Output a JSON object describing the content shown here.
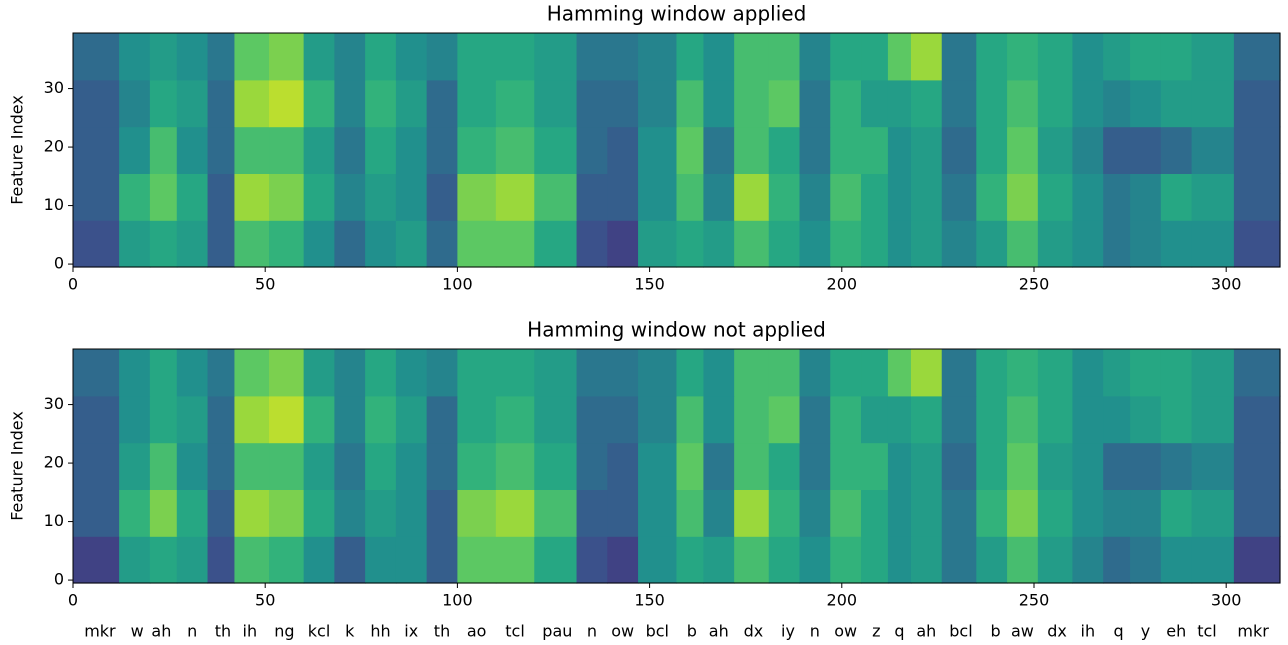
{
  "chart_data": [
    {
      "type": "heatmap",
      "title": "Hamming window applied",
      "ylabel": "Feature Index",
      "colormap": "viridis",
      "xlim": [
        0,
        314
      ],
      "ylim": [
        -0.5,
        39.5
      ],
      "xticks": [
        0,
        50,
        100,
        150,
        200,
        250,
        300
      ],
      "yticks": [
        0,
        10,
        20,
        30
      ],
      "x_edges": [
        0,
        12,
        20,
        27,
        35,
        42,
        51,
        60,
        68,
        76,
        84,
        92,
        100,
        110,
        120,
        131,
        139,
        147,
        157,
        164,
        172,
        181,
        189,
        197,
        205,
        212,
        218,
        226,
        235,
        243,
        251,
        260,
        268,
        275,
        283,
        291,
        302,
        314
      ],
      "y_edges": [
        -0.5,
        7.5,
        15.5,
        23.5,
        31.5,
        39.5
      ],
      "z": [
        [
          0.25,
          0.55,
          0.6,
          0.55,
          0.3,
          0.7,
          0.65,
          0.5,
          0.35,
          0.5,
          0.55,
          0.35,
          0.75,
          0.75,
          0.6,
          0.25,
          0.2,
          0.55,
          0.6,
          0.55,
          0.7,
          0.6,
          0.5,
          0.65,
          0.6,
          0.5,
          0.55,
          0.45,
          0.55,
          0.7,
          0.55,
          0.5,
          0.4,
          0.45,
          0.5,
          0.5,
          0.25
        ],
        [
          0.3,
          0.65,
          0.75,
          0.6,
          0.3,
          0.85,
          0.8,
          0.6,
          0.45,
          0.55,
          0.5,
          0.3,
          0.8,
          0.85,
          0.7,
          0.3,
          0.3,
          0.5,
          0.7,
          0.45,
          0.85,
          0.65,
          0.45,
          0.7,
          0.6,
          0.5,
          0.55,
          0.4,
          0.65,
          0.8,
          0.6,
          0.5,
          0.4,
          0.45,
          0.6,
          0.55,
          0.3
        ],
        [
          0.3,
          0.5,
          0.7,
          0.5,
          0.35,
          0.7,
          0.7,
          0.55,
          0.4,
          0.6,
          0.5,
          0.35,
          0.65,
          0.7,
          0.6,
          0.35,
          0.3,
          0.5,
          0.75,
          0.4,
          0.7,
          0.6,
          0.4,
          0.65,
          0.65,
          0.5,
          0.55,
          0.35,
          0.6,
          0.75,
          0.55,
          0.45,
          0.3,
          0.3,
          0.35,
          0.45,
          0.3
        ],
        [
          0.3,
          0.45,
          0.6,
          0.55,
          0.35,
          0.85,
          0.9,
          0.65,
          0.45,
          0.65,
          0.55,
          0.35,
          0.6,
          0.65,
          0.55,
          0.35,
          0.35,
          0.45,
          0.7,
          0.5,
          0.7,
          0.75,
          0.4,
          0.65,
          0.55,
          0.55,
          0.6,
          0.4,
          0.6,
          0.7,
          0.6,
          0.5,
          0.45,
          0.5,
          0.55,
          0.55,
          0.3
        ],
        [
          0.35,
          0.5,
          0.55,
          0.5,
          0.4,
          0.75,
          0.8,
          0.55,
          0.45,
          0.6,
          0.5,
          0.45,
          0.6,
          0.6,
          0.55,
          0.4,
          0.4,
          0.45,
          0.6,
          0.5,
          0.7,
          0.7,
          0.45,
          0.6,
          0.6,
          0.75,
          0.85,
          0.4,
          0.6,
          0.65,
          0.6,
          0.5,
          0.55,
          0.6,
          0.6,
          0.55,
          0.35
        ]
      ]
    },
    {
      "type": "heatmap",
      "title": "Hamming window not applied",
      "ylabel": "Feature Index",
      "colormap": "viridis",
      "xlim": [
        0,
        314
      ],
      "ylim": [
        -0.5,
        39.5
      ],
      "xticks": [
        0,
        50,
        100,
        150,
        200,
        250,
        300
      ],
      "yticks": [
        0,
        10,
        20,
        30
      ],
      "x_edges": [
        0,
        12,
        20,
        27,
        35,
        42,
        51,
        60,
        68,
        76,
        84,
        92,
        100,
        110,
        120,
        131,
        139,
        147,
        157,
        164,
        172,
        181,
        189,
        197,
        205,
        212,
        218,
        226,
        235,
        243,
        251,
        260,
        268,
        275,
        283,
        291,
        302,
        314
      ],
      "y_edges": [
        -0.5,
        7.5,
        15.5,
        23.5,
        31.5,
        39.5
      ],
      "z": [
        [
          0.2,
          0.55,
          0.6,
          0.55,
          0.25,
          0.7,
          0.65,
          0.5,
          0.3,
          0.5,
          0.5,
          0.3,
          0.75,
          0.75,
          0.6,
          0.25,
          0.2,
          0.5,
          0.6,
          0.55,
          0.7,
          0.6,
          0.5,
          0.65,
          0.6,
          0.5,
          0.55,
          0.4,
          0.55,
          0.7,
          0.55,
          0.45,
          0.35,
          0.4,
          0.5,
          0.5,
          0.2
        ],
        [
          0.3,
          0.65,
          0.8,
          0.6,
          0.3,
          0.85,
          0.8,
          0.6,
          0.45,
          0.55,
          0.5,
          0.3,
          0.8,
          0.85,
          0.7,
          0.3,
          0.3,
          0.5,
          0.7,
          0.45,
          0.85,
          0.65,
          0.45,
          0.7,
          0.6,
          0.5,
          0.55,
          0.4,
          0.65,
          0.8,
          0.6,
          0.5,
          0.45,
          0.45,
          0.6,
          0.55,
          0.3
        ],
        [
          0.3,
          0.55,
          0.7,
          0.5,
          0.35,
          0.7,
          0.7,
          0.55,
          0.4,
          0.6,
          0.5,
          0.35,
          0.65,
          0.7,
          0.6,
          0.35,
          0.3,
          0.5,
          0.75,
          0.4,
          0.7,
          0.6,
          0.4,
          0.65,
          0.65,
          0.5,
          0.55,
          0.35,
          0.6,
          0.75,
          0.55,
          0.5,
          0.35,
          0.35,
          0.4,
          0.45,
          0.3
        ],
        [
          0.3,
          0.5,
          0.6,
          0.55,
          0.35,
          0.85,
          0.9,
          0.65,
          0.45,
          0.65,
          0.55,
          0.35,
          0.6,
          0.65,
          0.55,
          0.35,
          0.35,
          0.45,
          0.7,
          0.5,
          0.7,
          0.75,
          0.4,
          0.65,
          0.55,
          0.55,
          0.6,
          0.4,
          0.6,
          0.7,
          0.6,
          0.5,
          0.5,
          0.55,
          0.6,
          0.55,
          0.3
        ],
        [
          0.35,
          0.5,
          0.6,
          0.5,
          0.4,
          0.75,
          0.8,
          0.55,
          0.45,
          0.6,
          0.5,
          0.45,
          0.6,
          0.6,
          0.55,
          0.4,
          0.4,
          0.45,
          0.6,
          0.5,
          0.7,
          0.7,
          0.45,
          0.6,
          0.6,
          0.75,
          0.85,
          0.4,
          0.6,
          0.65,
          0.6,
          0.5,
          0.55,
          0.6,
          0.6,
          0.55,
          0.35
        ]
      ],
      "phonemes": {
        "labels": [
          "mkr",
          "w",
          "ah",
          "n",
          "th",
          "ih",
          "ng",
          "kcl",
          "k",
          "hh",
          "ix",
          "th",
          "ao",
          "tcl",
          "pau",
          "n",
          "ow",
          "bcl",
          "b",
          "ah",
          "dx",
          "iy",
          "n",
          "ow",
          "z",
          "q",
          "ah",
          "bcl",
          "b",
          "aw",
          "dx",
          "ih",
          "q",
          "y",
          "eh",
          "tcl",
          "mkr"
        ],
        "x": [
          7,
          16.7,
          23,
          31,
          39,
          46,
          55,
          64,
          72,
          80,
          88,
          96,
          105,
          115,
          126,
          135,
          143,
          152,
          161,
          168,
          177,
          186,
          193,
          201,
          209,
          215,
          222,
          231,
          240,
          247,
          256,
          264,
          272,
          279,
          287,
          295,
          307
        ]
      }
    }
  ]
}
